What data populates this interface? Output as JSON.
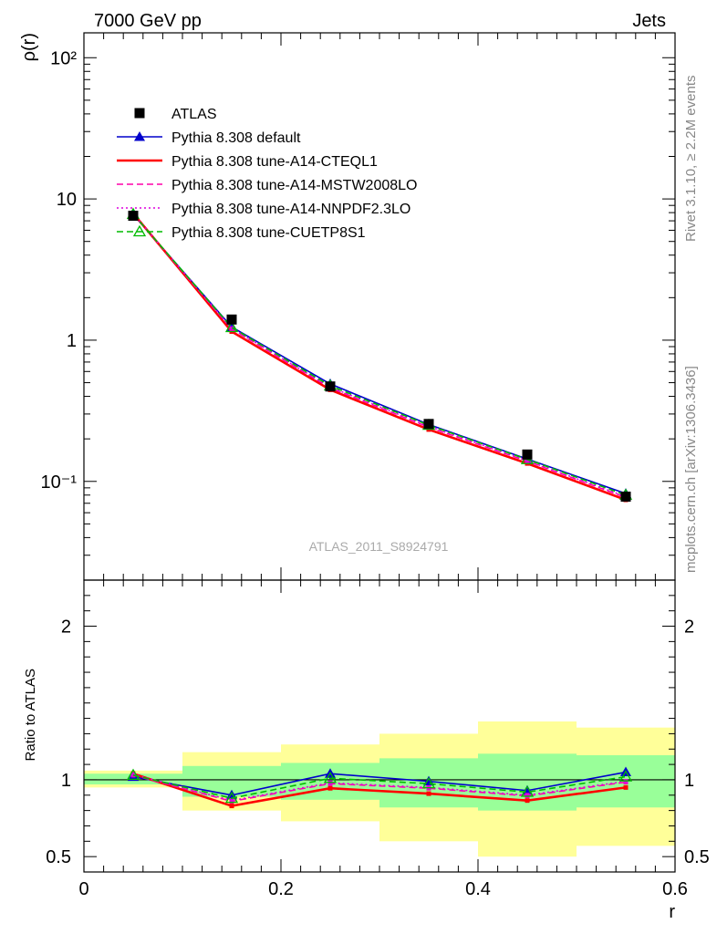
{
  "header": {
    "left": "7000 GeV pp",
    "right": "Jets"
  },
  "side_labels": {
    "rivet": "Rivet 3.1.10, ≥ 2.2M events",
    "mcplots": "mcplots.cern.ch [arXiv:1306.3436]"
  },
  "watermark": "ATLAS_2011_S8924791",
  "chart_data": [
    {
      "type": "line",
      "panel": "main",
      "ylabel": "ρ(r)",
      "yscale": "log",
      "ylim": [
        0.02,
        150
      ],
      "xlim": [
        0,
        0.6
      ],
      "ytick_labels": [
        "10⁻¹",
        "1",
        "10",
        "10²"
      ],
      "x": [
        0.05,
        0.15,
        0.25,
        0.35,
        0.45,
        0.55
      ],
      "legend_position": "top-left",
      "series": [
        {
          "name": "ATLAS",
          "color": "#000000",
          "marker": "square",
          "dash": "none",
          "values": [
            7.6,
            1.4,
            0.47,
            0.255,
            0.155,
            0.078
          ]
        },
        {
          "name": "Pythia 8.308 default",
          "color": "#0000cc",
          "marker": "triangle",
          "dash": "solid",
          "values": [
            7.75,
            1.24,
            0.49,
            0.253,
            0.144,
            0.082
          ]
        },
        {
          "name": "Pythia 8.308 tune-A14-CTEQL1",
          "color": "#ff0000",
          "marker": "dot",
          "dash": "solid",
          "values": [
            7.9,
            1.15,
            0.445,
            0.233,
            0.134,
            0.074
          ]
        },
        {
          "name": "Pythia 8.308 tune-A14-MSTW2008LO",
          "color": "#ff00aa",
          "marker": "dot",
          "dash": "dashed",
          "values": [
            7.8,
            1.2,
            0.46,
            0.242,
            0.139,
            0.077
          ]
        },
        {
          "name": "Pythia 8.308 tune-A14-NNPDF2.3LO",
          "color": "#dd00dd",
          "marker": "dot",
          "dash": "dotted",
          "values": [
            7.85,
            1.21,
            0.465,
            0.245,
            0.14,
            0.078
          ]
        },
        {
          "name": "Pythia 8.308 tune-CUETP8S1",
          "color": "#00bb00",
          "marker": "open-triangle",
          "dash": "dashed",
          "values": [
            7.8,
            1.23,
            0.475,
            0.25,
            0.143,
            0.08
          ]
        }
      ]
    },
    {
      "type": "line",
      "panel": "ratio",
      "xlabel": "r",
      "ylabel": "Ratio to ATLAS",
      "ylim": [
        0.4,
        2.3
      ],
      "xlim": [
        0,
        0.6
      ],
      "xtick_labels": [
        "0",
        "0.2",
        "0.4",
        "0.6"
      ],
      "ytick_labels": [
        "0.5",
        "1",
        "2"
      ],
      "x": [
        0.05,
        0.15,
        0.25,
        0.35,
        0.45,
        0.55
      ],
      "bands": {
        "bins": [
          [
            0,
            0.1
          ],
          [
            0.1,
            0.2
          ],
          [
            0.2,
            0.3
          ],
          [
            0.3,
            0.4
          ],
          [
            0.4,
            0.5
          ],
          [
            0.5,
            0.6
          ]
        ],
        "yellow": [
          [
            0.95,
            1.06
          ],
          [
            0.8,
            1.18
          ],
          [
            0.73,
            1.23
          ],
          [
            0.6,
            1.3
          ],
          [
            0.5,
            1.38
          ],
          [
            0.57,
            1.34
          ]
        ],
        "green": [
          [
            0.97,
            1.04
          ],
          [
            0.89,
            1.09
          ],
          [
            0.87,
            1.11
          ],
          [
            0.82,
            1.14
          ],
          [
            0.8,
            1.17
          ],
          [
            0.82,
            1.16
          ]
        ]
      },
      "series": [
        {
          "name": "Pythia 8.308 default",
          "color": "#0000cc",
          "marker": "triangle",
          "dash": "solid",
          "values": [
            1.02,
            0.9,
            1.04,
            0.99,
            0.93,
            1.05
          ]
        },
        {
          "name": "Pythia 8.308 tune-A14-CTEQL1",
          "color": "#ff0000",
          "marker": "dot",
          "dash": "solid",
          "values": [
            1.04,
            0.83,
            0.945,
            0.91,
            0.865,
            0.95
          ]
        },
        {
          "name": "Pythia 8.308 tune-A14-MSTW2008LO",
          "color": "#ff00aa",
          "marker": "dot",
          "dash": "dashed",
          "values": [
            1.03,
            0.86,
            0.975,
            0.945,
            0.895,
            0.985
          ]
        },
        {
          "name": "Pythia 8.308 tune-A14-NNPDF2.3LO",
          "color": "#dd00dd",
          "marker": "dot",
          "dash": "dotted",
          "values": [
            1.035,
            0.865,
            0.98,
            0.95,
            0.9,
            0.99
          ]
        },
        {
          "name": "Pythia 8.308 tune-CUETP8S1",
          "color": "#00bb00",
          "marker": "open-triangle",
          "dash": "dashed",
          "values": [
            1.03,
            0.88,
            1.01,
            0.975,
            0.92,
            1.02
          ]
        }
      ]
    }
  ]
}
